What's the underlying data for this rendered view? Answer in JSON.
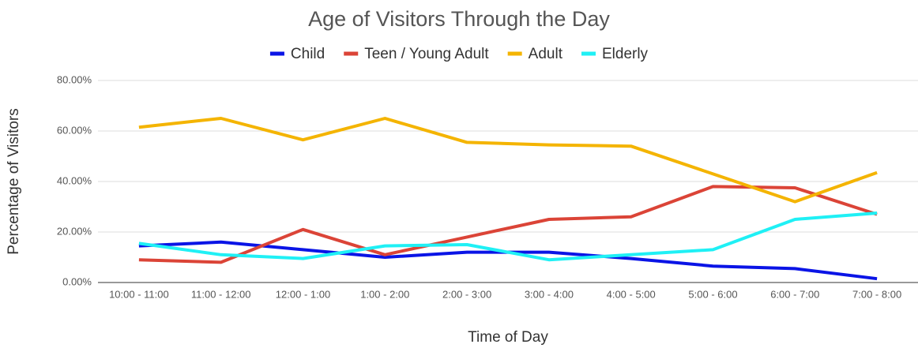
{
  "chart_data": {
    "type": "line",
    "title": "Age of Visitors Through the Day",
    "x_label": "Time of Day",
    "y_label": "Percentage of Visitors",
    "categories": [
      "10:00 - 11:00",
      "11:00 - 12:00",
      "12:00 - 1:00",
      "1:00 - 2:00",
      "2:00 - 3:00",
      "3:00 - 4:00",
      "4:00 - 5:00",
      "5:00 - 6:00",
      "6:00 - 7:00",
      "7:00 - 8:00"
    ],
    "series": [
      {
        "name": "Child",
        "color": "#0a14e6",
        "values": [
          14.5,
          16,
          13,
          10,
          12,
          12,
          9.5,
          6.5,
          5.5,
          1.5
        ]
      },
      {
        "name": "Teen / Young Adult",
        "color": "#db4437",
        "values": [
          9,
          8,
          21,
          11,
          18,
          25,
          26,
          38,
          37.5,
          27
        ]
      },
      {
        "name": "Adult",
        "color": "#f4b400",
        "values": [
          61.5,
          65,
          56.5,
          65,
          55.5,
          54.5,
          54,
          43,
          32,
          43.5
        ]
      },
      {
        "name": "Elderly",
        "color": "#1ff0f5",
        "values": [
          15.5,
          11,
          9.5,
          14.5,
          15,
          9,
          11,
          13,
          25,
          27.5
        ]
      }
    ],
    "ylim": [
      0,
      80
    ],
    "yticks": [
      {
        "value": 0,
        "label": "0.00%"
      },
      {
        "value": 20,
        "label": "20.00%"
      },
      {
        "value": 40,
        "label": "40.00%"
      },
      {
        "value": 60,
        "label": "60.00%"
      },
      {
        "value": 80,
        "label": "80.00%"
      }
    ],
    "grid": true,
    "legend": "top"
  }
}
